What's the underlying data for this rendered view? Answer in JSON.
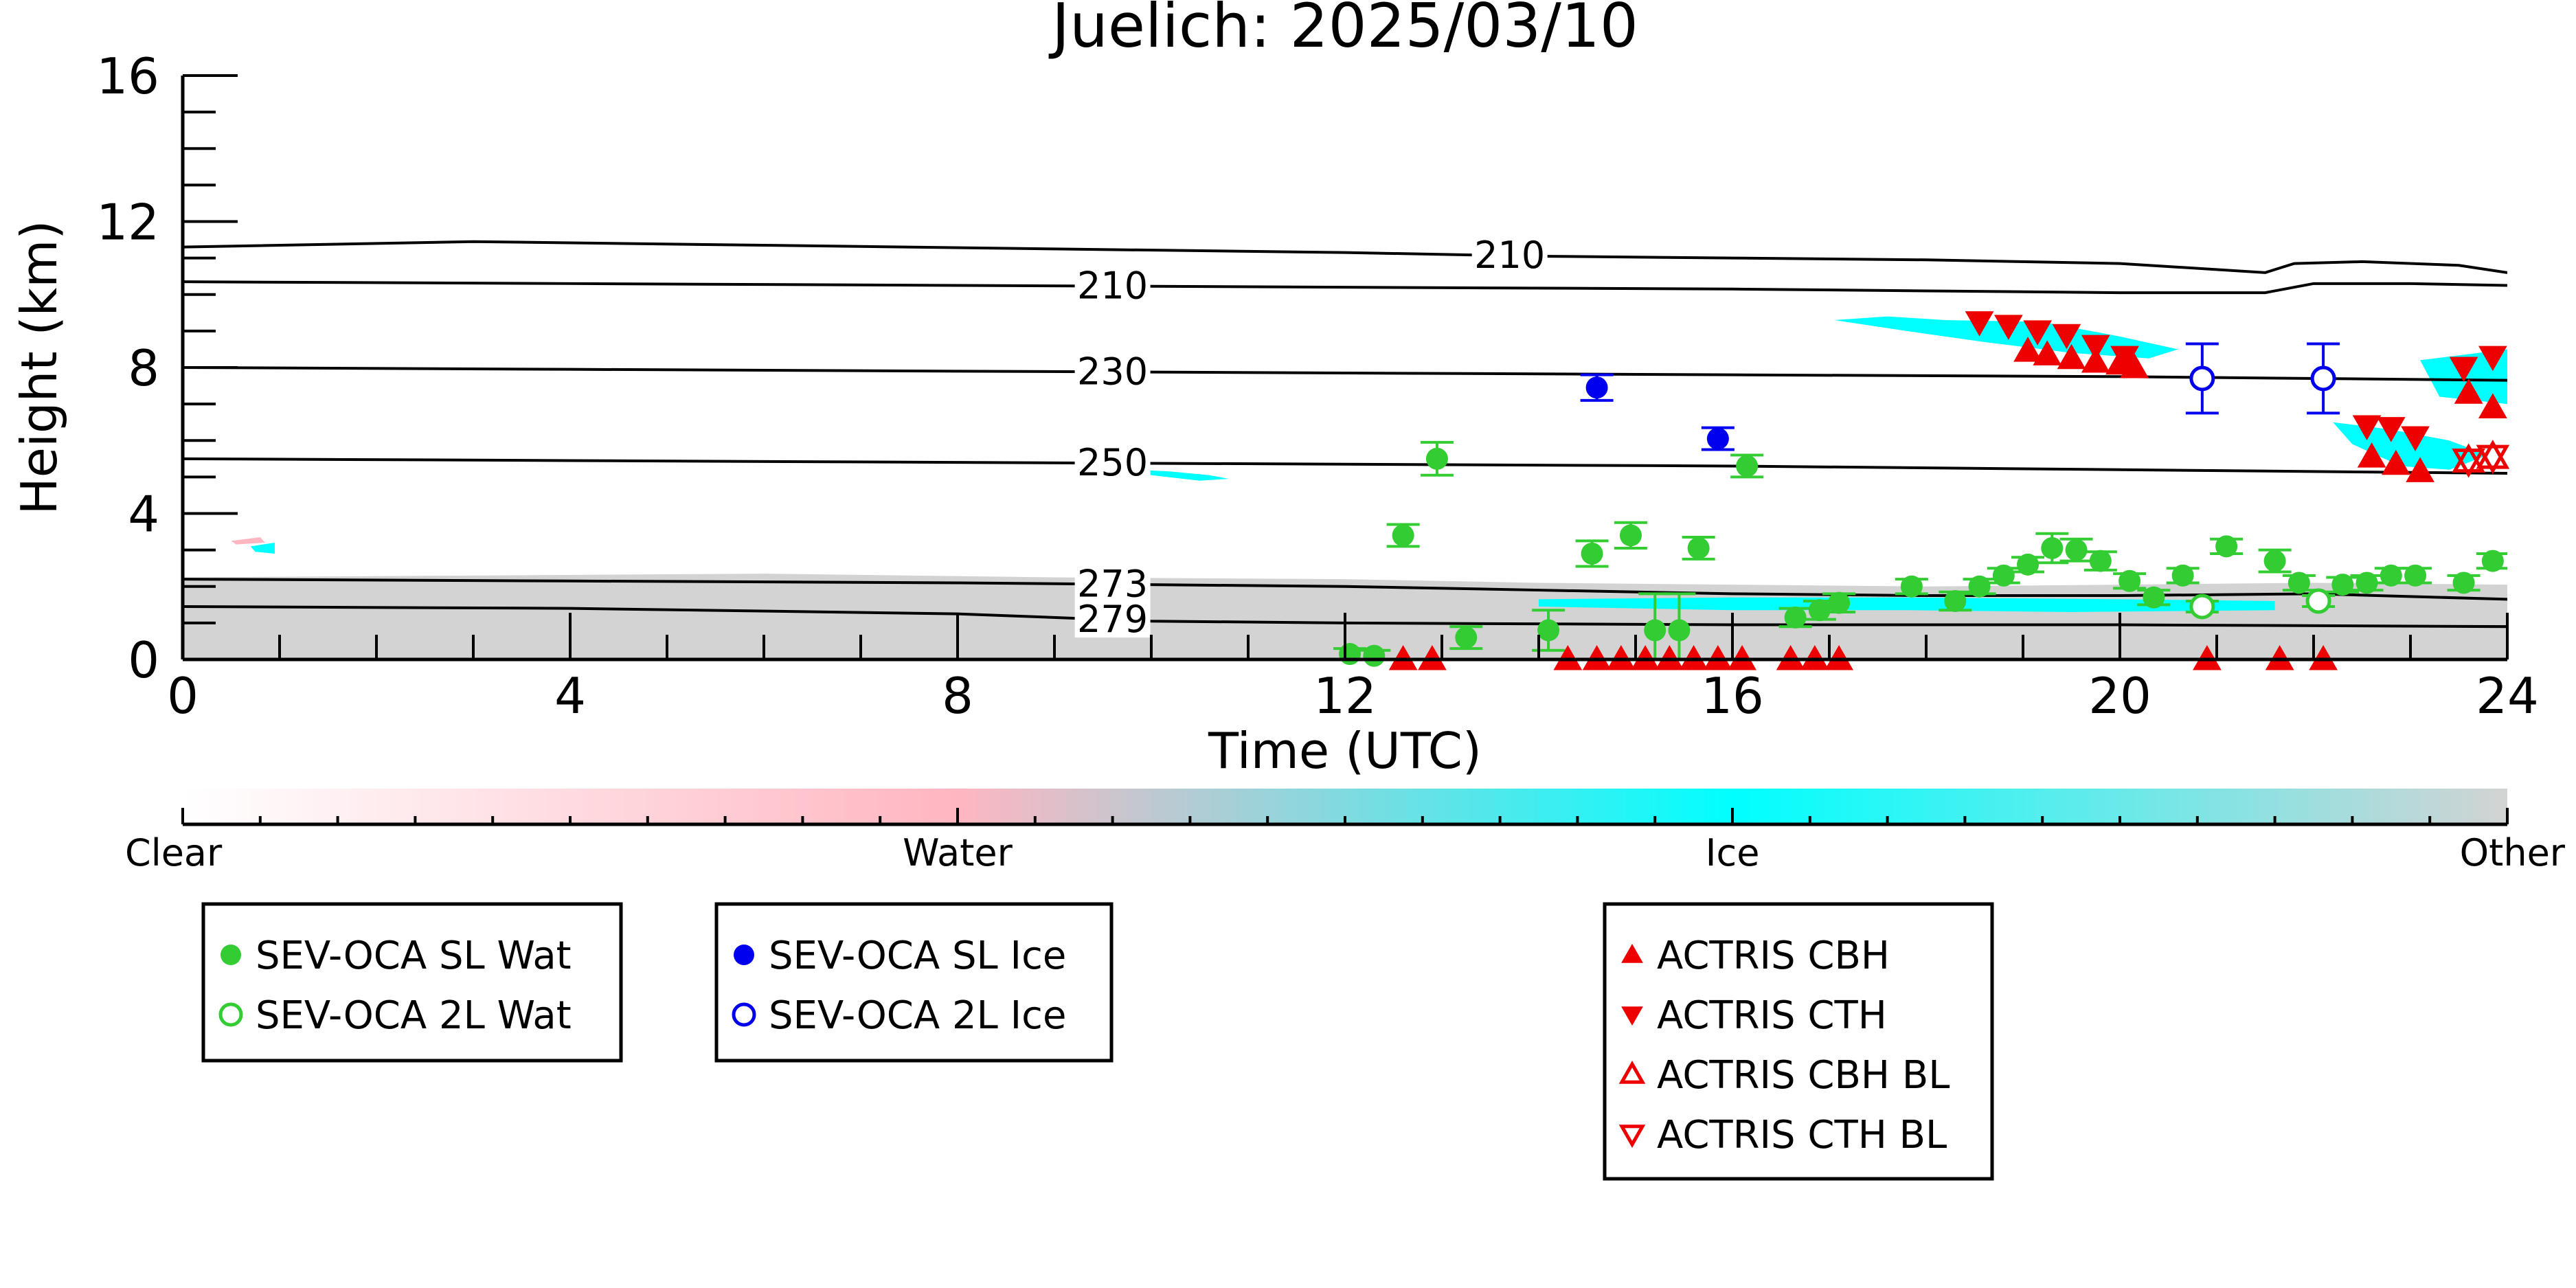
{
  "chart_data": {
    "type": "scatter",
    "title": "Juelich: 2025/03/10",
    "xlabel": "Time (UTC)",
    "ylabel": "Height (km)",
    "xlim": [
      0,
      24
    ],
    "ylim": [
      0,
      16
    ],
    "x_ticks": [
      0,
      4,
      8,
      12,
      16,
      20,
      24
    ],
    "y_ticks": [
      0,
      4,
      8,
      12,
      16
    ],
    "contours": [
      {
        "label": "210",
        "label_x": 13.7,
        "points": [
          [
            0,
            11.3
          ],
          [
            3,
            11.45
          ],
          [
            6,
            11.35
          ],
          [
            9,
            11.25
          ],
          [
            12,
            11.15
          ],
          [
            14,
            11.05
          ],
          [
            16,
            11.0
          ],
          [
            18,
            10.95
          ],
          [
            20,
            10.85
          ],
          [
            21.5,
            10.6
          ],
          [
            21.8,
            10.85
          ],
          [
            22.5,
            10.9
          ],
          [
            23.5,
            10.8
          ],
          [
            24,
            10.6
          ]
        ]
      },
      {
        "label": "210",
        "label_x": 9.6,
        "points": [
          [
            0,
            10.35
          ],
          [
            4,
            10.3
          ],
          [
            8,
            10.25
          ],
          [
            12,
            10.2
          ],
          [
            16,
            10.15
          ],
          [
            20,
            10.05
          ],
          [
            21.5,
            10.05
          ],
          [
            22,
            10.3
          ],
          [
            23,
            10.3
          ],
          [
            24,
            10.25
          ]
        ]
      },
      {
        "label": "230",
        "label_x": 9.6,
        "points": [
          [
            0,
            8.0
          ],
          [
            4,
            7.95
          ],
          [
            8,
            7.9
          ],
          [
            12,
            7.85
          ],
          [
            16,
            7.8
          ],
          [
            20,
            7.75
          ],
          [
            24,
            7.65
          ]
        ]
      },
      {
        "label": "250",
        "label_x": 9.6,
        "points": [
          [
            0,
            5.5
          ],
          [
            4,
            5.45
          ],
          [
            8,
            5.4
          ],
          [
            12,
            5.35
          ],
          [
            16,
            5.3
          ],
          [
            20,
            5.2
          ],
          [
            24,
            5.1
          ]
        ]
      },
      {
        "label": "273",
        "label_x": 9.6,
        "points": [
          [
            0,
            2.2
          ],
          [
            4,
            2.15
          ],
          [
            8,
            2.1
          ],
          [
            12,
            2.0
          ],
          [
            14,
            1.9
          ],
          [
            16,
            1.8
          ],
          [
            18,
            1.75
          ],
          [
            20,
            1.75
          ],
          [
            22,
            1.8
          ],
          [
            24,
            1.65
          ]
        ]
      },
      {
        "label": "279",
        "label_x": 9.6,
        "points": [
          [
            0,
            1.45
          ],
          [
            4,
            1.4
          ],
          [
            8,
            1.25
          ],
          [
            10,
            1.05
          ],
          [
            12,
            1.0
          ],
          [
            16,
            0.95
          ],
          [
            20,
            0.95
          ],
          [
            24,
            0.9
          ]
        ]
      }
    ],
    "classification_regions": [
      {
        "class": "Other",
        "points": [
          [
            0,
            0
          ],
          [
            0,
            2.25
          ],
          [
            3,
            2.3
          ],
          [
            6,
            2.35
          ],
          [
            9,
            2.25
          ],
          [
            12,
            2.2
          ],
          [
            14,
            2.1
          ],
          [
            16,
            2.05
          ],
          [
            18,
            2.0
          ],
          [
            20,
            2.05
          ],
          [
            22,
            2.1
          ],
          [
            24,
            2.05
          ],
          [
            24,
            0
          ]
        ]
      },
      {
        "class": "Water",
        "points": [
          [
            0.5,
            3.25
          ],
          [
            0.8,
            3.35
          ],
          [
            0.85,
            3.2
          ],
          [
            0.55,
            3.15
          ]
        ]
      },
      {
        "class": "Ice",
        "points": [
          [
            0.7,
            3.1
          ],
          [
            0.95,
            3.2
          ],
          [
            0.95,
            2.9
          ],
          [
            0.75,
            2.95
          ]
        ]
      },
      {
        "class": "Ice",
        "points": [
          [
            9.85,
            5.2
          ],
          [
            10.2,
            5.15
          ],
          [
            10.6,
            5.05
          ],
          [
            10.8,
            4.95
          ],
          [
            10.5,
            4.9
          ],
          [
            10.0,
            5.05
          ]
        ]
      },
      {
        "class": "Ice",
        "points": [
          [
            17.05,
            9.3
          ],
          [
            17.6,
            9.4
          ],
          [
            18.2,
            9.3
          ],
          [
            19.2,
            9.25
          ],
          [
            20.0,
            8.85
          ],
          [
            20.6,
            8.5
          ],
          [
            20.3,
            8.25
          ],
          [
            19.5,
            8.4
          ],
          [
            18.6,
            8.7
          ],
          [
            17.8,
            9.0
          ]
        ]
      },
      {
        "class": "Ice",
        "points": [
          [
            23.1,
            8.2
          ],
          [
            24,
            8.5
          ],
          [
            24,
            7.0
          ],
          [
            23.3,
            7.2
          ]
        ]
      },
      {
        "class": "Ice",
        "points": [
          [
            22.2,
            6.5
          ],
          [
            22.8,
            6.3
          ],
          [
            23.4,
            6.0
          ],
          [
            23.8,
            5.6
          ],
          [
            23.4,
            5.2
          ],
          [
            22.9,
            5.3
          ],
          [
            22.4,
            5.9
          ]
        ]
      },
      {
        "class": "Ice",
        "points": [
          [
            14.0,
            1.65
          ],
          [
            16.0,
            1.7
          ],
          [
            17.8,
            1.7
          ],
          [
            20.0,
            1.65
          ],
          [
            21.6,
            1.6
          ],
          [
            21.6,
            1.35
          ],
          [
            19.5,
            1.3
          ],
          [
            17.8,
            1.35
          ],
          [
            16.0,
            1.35
          ],
          [
            14.0,
            1.45
          ]
        ]
      }
    ],
    "series": [
      {
        "name": "SEV-OCA SL Wat",
        "color": "#33cc33",
        "marker": "filled-circle",
        "points": [
          [
            12.6,
            3.4,
            0.3
          ],
          [
            12.95,
            5.5,
            0.45
          ],
          [
            13.25,
            0.6,
            0.3
          ],
          [
            14.1,
            0.8,
            0.55
          ],
          [
            14.55,
            2.9,
            0.35
          ],
          [
            14.95,
            3.4,
            0.35
          ],
          [
            15.2,
            0.8,
            1.0
          ],
          [
            15.45,
            0.8,
            1.0
          ],
          [
            15.65,
            3.05,
            0.3
          ],
          [
            16.15,
            5.3,
            0.3
          ],
          [
            16.65,
            1.15,
            0.25
          ],
          [
            16.9,
            1.35,
            0.25
          ],
          [
            17.1,
            1.55,
            0.25
          ],
          [
            17.85,
            2.0,
            0.2
          ],
          [
            18.3,
            1.6,
            0.25
          ],
          [
            18.55,
            2.0,
            0.2
          ],
          [
            18.8,
            2.3,
            0.2
          ],
          [
            19.05,
            2.6,
            0.2
          ],
          [
            19.3,
            3.05,
            0.4
          ],
          [
            19.55,
            3.0,
            0.3
          ],
          [
            19.8,
            2.7,
            0.25
          ],
          [
            20.1,
            2.15,
            0.2
          ],
          [
            20.35,
            1.7,
            0.2
          ],
          [
            20.65,
            2.3,
            0.2
          ],
          [
            21.1,
            3.1,
            0.2
          ],
          [
            21.6,
            2.7,
            0.3
          ],
          [
            21.85,
            2.1,
            0.2
          ],
          [
            22.3,
            2.05,
            0.2
          ],
          [
            22.55,
            2.1,
            0.2
          ],
          [
            22.8,
            2.3,
            0.2
          ],
          [
            23.05,
            2.3,
            0.2
          ],
          [
            23.55,
            2.1,
            0.2
          ],
          [
            23.85,
            2.7,
            0.2
          ],
          [
            12.05,
            0.15,
            0.15
          ],
          [
            12.3,
            0.1,
            0.15
          ]
        ]
      },
      {
        "name": "SEV-OCA 2L Wat",
        "color": "#33cc33",
        "marker": "open-circle",
        "points": [
          [
            20.85,
            1.45,
            0.15
          ],
          [
            22.05,
            1.6,
            0.15
          ]
        ]
      },
      {
        "name": "SEV-OCA SL Ice",
        "color": "#0000ee",
        "marker": "filled-circle",
        "points": [
          [
            14.6,
            7.45,
            0.35
          ],
          [
            15.85,
            6.05,
            0.3
          ]
        ]
      },
      {
        "name": "SEV-OCA 2L Ice",
        "color": "#0000ee",
        "marker": "open-circle",
        "points": [
          [
            20.85,
            7.7,
            0.95
          ],
          [
            22.1,
            7.7,
            0.95
          ]
        ]
      },
      {
        "name": "ACTRIS CBH",
        "color": "#ee0000",
        "marker": "triangle-up",
        "points": [
          [
            19.05,
            8.45
          ],
          [
            19.25,
            8.35
          ],
          [
            19.5,
            8.25
          ],
          [
            19.75,
            8.15
          ],
          [
            20.0,
            8.1
          ],
          [
            20.15,
            8.0
          ],
          [
            22.6,
            5.55
          ],
          [
            22.85,
            5.35
          ],
          [
            23.1,
            5.15
          ],
          [
            23.6,
            7.3
          ],
          [
            23.85,
            6.9
          ],
          [
            12.6,
            0.0
          ],
          [
            12.9,
            0.0
          ],
          [
            14.3,
            0.0
          ],
          [
            14.6,
            0.0
          ],
          [
            14.85,
            0.0
          ],
          [
            15.1,
            0.0
          ],
          [
            15.35,
            0.0
          ],
          [
            15.6,
            0.0
          ],
          [
            15.85,
            0.0
          ],
          [
            16.1,
            0.0
          ],
          [
            16.6,
            0.0
          ],
          [
            16.85,
            0.0
          ],
          [
            17.1,
            0.0
          ],
          [
            20.9,
            0.0
          ],
          [
            21.65,
            0.0
          ],
          [
            22.1,
            0.0
          ]
        ]
      },
      {
        "name": "ACTRIS CTH",
        "color": "#ee0000",
        "marker": "triangle-down",
        "points": [
          [
            18.55,
            9.25
          ],
          [
            18.85,
            9.15
          ],
          [
            19.15,
            9.0
          ],
          [
            19.45,
            8.9
          ],
          [
            19.75,
            8.6
          ],
          [
            20.05,
            8.3
          ],
          [
            22.55,
            6.4
          ],
          [
            22.8,
            6.35
          ],
          [
            23.05,
            6.1
          ],
          [
            23.55,
            8.0
          ],
          [
            23.85,
            8.3
          ]
        ]
      },
      {
        "name": "ACTRIS CBH BL",
        "color": "#ee0000",
        "marker": "open-triangle-up",
        "points": [
          [
            23.6,
            5.45
          ],
          [
            23.85,
            5.55
          ]
        ]
      },
      {
        "name": "ACTRIS CTH BL",
        "color": "#ee0000",
        "marker": "open-triangle-down",
        "points": [
          [
            23.6,
            5.45
          ],
          [
            23.85,
            5.55
          ]
        ]
      }
    ],
    "colorbar": {
      "labels": [
        "Clear",
        "Water",
        "Ice",
        "Other"
      ],
      "colors": [
        "#ffffff",
        "#ffb6c1",
        "#00ffff",
        "#d3d3d3"
      ]
    },
    "legends": [
      {
        "entries": [
          "SEV-OCA SL Wat",
          "SEV-OCA 2L Wat"
        ]
      },
      {
        "entries": [
          "SEV-OCA SL Ice",
          "SEV-OCA 2L Ice"
        ]
      },
      {
        "entries": [
          "ACTRIS CBH",
          "ACTRIS CTH",
          "ACTRIS CBH BL",
          "ACTRIS CTH BL"
        ]
      }
    ],
    "grid": false
  }
}
